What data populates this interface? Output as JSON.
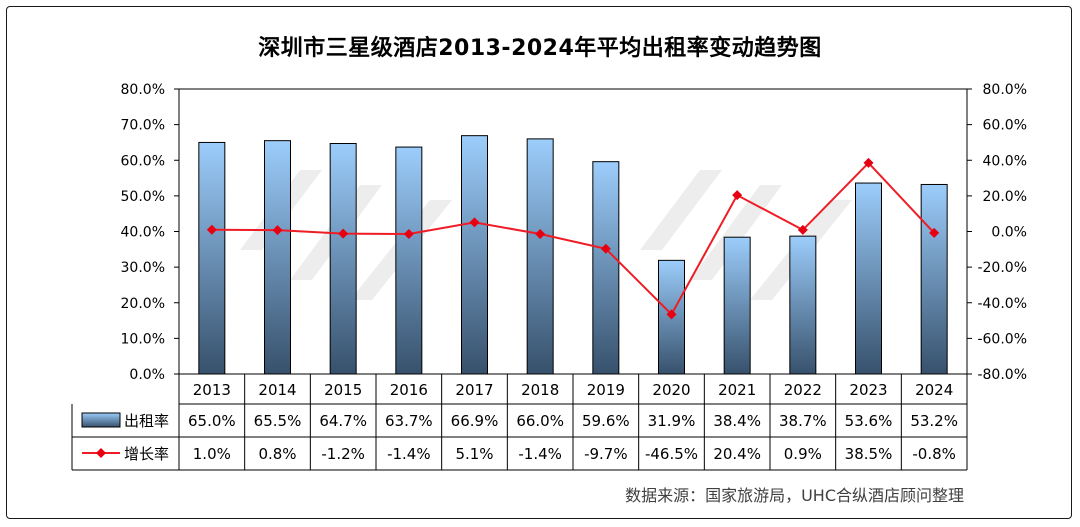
{
  "title": "深圳市三星级酒店2013-2024年平均出租率变动趋势图",
  "source": "数据来源：国家旅游局，UHC合纵酒店顾问整理",
  "colors": {
    "bar_top": "#9ccdfb",
    "bar_bottom": "#37516c",
    "bar_stroke": "#000000",
    "line": "#ee1c25",
    "marker": "#e60012"
  },
  "chart_data": {
    "type": "bar",
    "categories": [
      "2013",
      "2014",
      "2015",
      "2016",
      "2017",
      "2018",
      "2019",
      "2020",
      "2021",
      "2022",
      "2023",
      "2024"
    ],
    "series": [
      {
        "name": "出租率",
        "type": "bar",
        "axis": "left",
        "values": [
          65.0,
          65.5,
          64.7,
          63.7,
          66.9,
          66.0,
          59.6,
          31.9,
          38.4,
          38.7,
          53.6,
          53.2
        ],
        "labels": [
          "65.0%",
          "65.5%",
          "64.7%",
          "63.7%",
          "66.9%",
          "66.0%",
          "59.6%",
          "31.9%",
          "38.4%",
          "38.7%",
          "53.6%",
          "53.2%"
        ]
      },
      {
        "name": "增长率",
        "type": "line",
        "axis": "right",
        "values": [
          1.0,
          0.8,
          -1.2,
          -1.4,
          5.1,
          -1.4,
          -9.7,
          -46.5,
          20.4,
          0.9,
          38.5,
          -0.8
        ],
        "labels": [
          "1.0%",
          "0.8%",
          "-1.2%",
          "-1.4%",
          "5.1%",
          "-1.4%",
          "-9.7%",
          "-46.5%",
          "20.4%",
          "0.9%",
          "38.5%",
          "-0.8%"
        ]
      }
    ],
    "y_left": {
      "range": [
        0,
        80
      ],
      "ticks": [
        "0.0%",
        "10.0%",
        "20.0%",
        "30.0%",
        "40.0%",
        "50.0%",
        "60.0%",
        "70.0%",
        "80.0%"
      ]
    },
    "y_right": {
      "range": [
        -80,
        80
      ],
      "ticks": [
        "-80.0%",
        "-60.0%",
        "-40.0%",
        "-20.0%",
        "0.0%",
        "20.0%",
        "40.0%",
        "60.0%",
        "80.0%"
      ]
    },
    "grid": false,
    "legend": "data-table"
  }
}
